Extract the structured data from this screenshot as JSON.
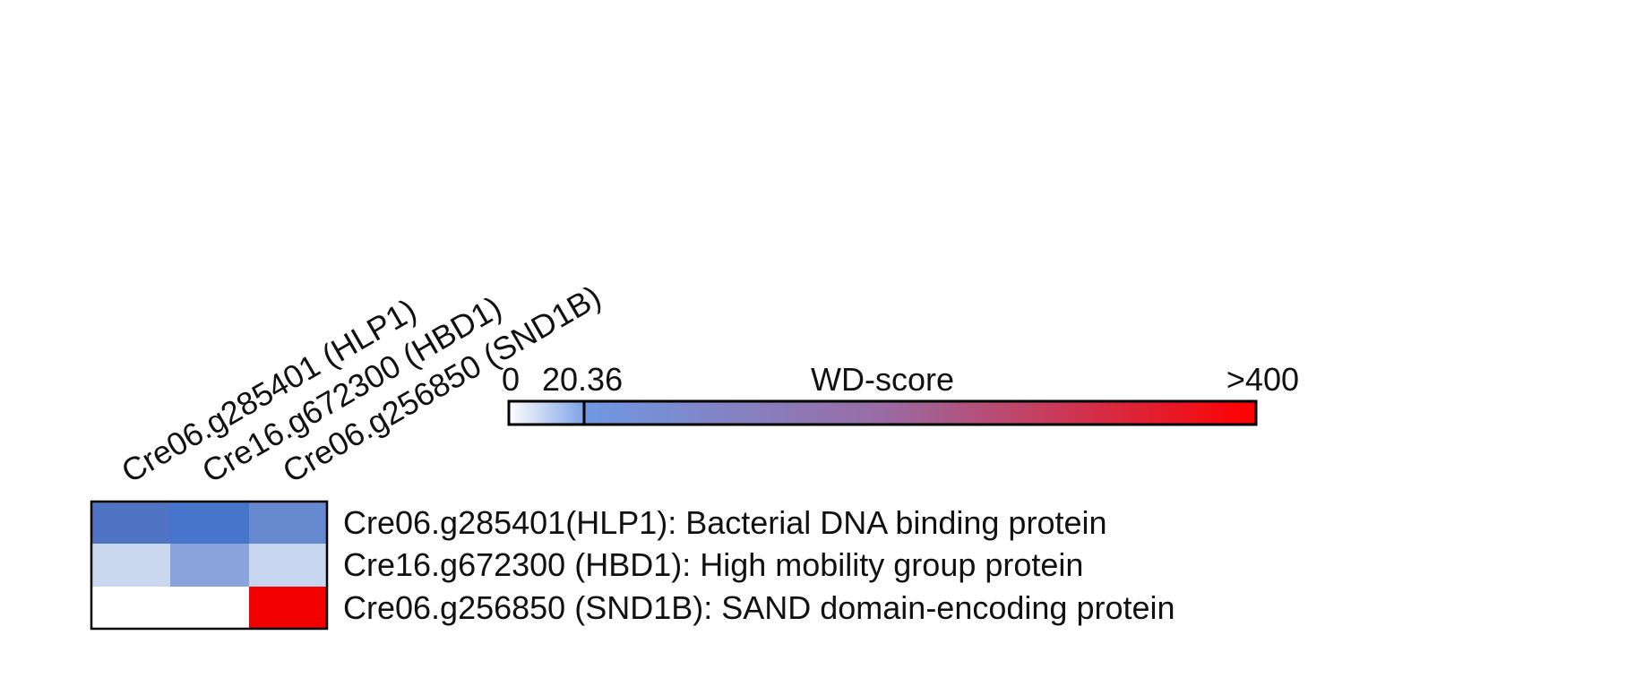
{
  "chart_data": {
    "type": "heatmap",
    "columns": [
      "Cre06.g285401 (HLP1)",
      "Cre16.g672300 (HBD1)",
      "Cre06.g256850 (SND1B)"
    ],
    "rows": [
      "Cre06.g285401(HLP1): Bacterial DNA binding protein",
      "Cre16.g672300 (HBD1): High mobility group protein",
      "Cre06.g256850 (SND1B): SAND domain-encoding protein"
    ],
    "cell_colors": [
      [
        "#4f74c4",
        "#4675cb",
        "#6689cf"
      ],
      [
        "#cbd7ef",
        "#89a3dc",
        "#c8d5ef"
      ],
      [
        "#ffffff",
        "#ffffff",
        "#f20000"
      ]
    ],
    "colorbar": {
      "title": "WD-score",
      "min_label": "0",
      "threshold_label": "20.36",
      "max_label": ">400",
      "min_value": 0,
      "threshold_value": 20.36,
      "max_value": 400,
      "colors": {
        "low_start": "#ffffff",
        "low_end": "#7ea3e6",
        "high_start": "#6e99e2",
        "high_mid": "#9a6ba3",
        "high_end": "#ff0000"
      }
    }
  }
}
